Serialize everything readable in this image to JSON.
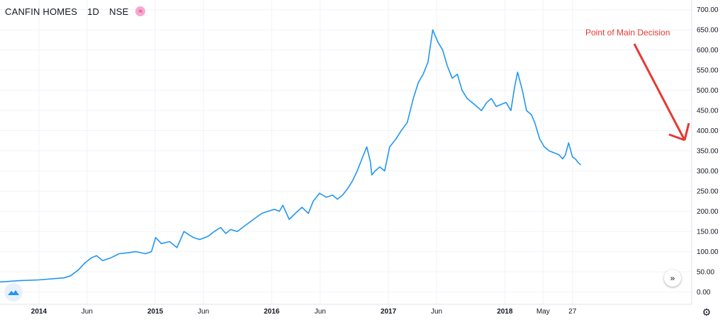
{
  "header": {
    "symbol": "CANFIN HOMES",
    "interval": "1D",
    "exchange": "NSE",
    "badge_icon": "compare-icon"
  },
  "annotation": {
    "text": "Point of Main Decision",
    "color": "#e53935"
  },
  "controls": {
    "scroll_icon": "double-chevron-right-icon",
    "logo_icon": "tradingview-logo-icon",
    "settings_icon": "gear-icon"
  },
  "chart_data": {
    "type": "line",
    "title": "CANFIN HOMES · 1D · NSE",
    "line_color": "#2196f3",
    "ylim": [
      -20,
      710
    ],
    "y_ticks": [
      "700.00",
      "650.00",
      "600.00",
      "550.00",
      "500.00",
      "450.00",
      "400.00",
      "350.00",
      "300.00",
      "250.00",
      "200.00",
      "150.00",
      "100.00",
      "50.00",
      "0.00"
    ],
    "xlim": [
      "2013-09-01",
      "2019-08-10"
    ],
    "x_ticks": [
      {
        "date": "2014-01-01",
        "label": "2014",
        "bold": true
      },
      {
        "date": "2014-06-01",
        "label": "Jun",
        "bold": false
      },
      {
        "date": "2015-01-01",
        "label": "2015",
        "bold": true
      },
      {
        "date": "2015-06-01",
        "label": "Jun",
        "bold": false
      },
      {
        "date": "2016-01-01",
        "label": "2016",
        "bold": true
      },
      {
        "date": "2016-06-01",
        "label": "Jun",
        "bold": false
      },
      {
        "date": "2017-01-01",
        "label": "2017",
        "bold": true
      },
      {
        "date": "2017-06-01",
        "label": "Jun",
        "bold": false
      },
      {
        "date": "2018-01-01",
        "label": "2018",
        "bold": true
      },
      {
        "date": "2018-05-01",
        "label": "May",
        "bold": false
      },
      {
        "date": "2018-08-01",
        "label": "27",
        "bold": false
      }
    ],
    "grid": true,
    "series": [
      {
        "dates": [
          "2013-09-01",
          "2013-11-01",
          "2014-01-01",
          "2014-02-15",
          "2014-03-20",
          "2014-04-10",
          "2014-05-05",
          "2014-05-25",
          "2014-06-15",
          "2014-07-01",
          "2014-07-20",
          "2014-08-15",
          "2014-09-10",
          "2014-10-05",
          "2014-11-01",
          "2014-12-01",
          "2014-12-20",
          "2015-01-02",
          "2015-01-20",
          "2015-02-15",
          "2015-03-10",
          "2015-04-01",
          "2015-04-20",
          "2015-05-01",
          "2015-05-20",
          "2015-06-15",
          "2015-07-05",
          "2015-07-25",
          "2015-08-10",
          "2015-08-25",
          "2015-09-15",
          "2015-10-10",
          "2015-11-05",
          "2015-12-01",
          "2015-12-20",
          "2016-01-10",
          "2016-01-25",
          "2016-02-05",
          "2016-02-25",
          "2016-03-15",
          "2016-04-05",
          "2016-04-25",
          "2016-05-10",
          "2016-05-30",
          "2016-06-20",
          "2016-07-10",
          "2016-07-25",
          "2016-08-10",
          "2016-08-25",
          "2016-09-10",
          "2016-09-25",
          "2016-10-10",
          "2016-10-25",
          "2016-11-05",
          "2016-11-10",
          "2016-11-20",
          "2016-12-05",
          "2016-12-20",
          "2017-01-05",
          "2017-01-25",
          "2017-02-10",
          "2017-03-01",
          "2017-03-20",
          "2017-04-05",
          "2017-04-20",
          "2017-05-05",
          "2017-05-20",
          "2017-06-05",
          "2017-06-20",
          "2017-07-05",
          "2017-07-20",
          "2017-08-05",
          "2017-08-20",
          "2017-09-05",
          "2017-09-20",
          "2017-10-05",
          "2017-10-20",
          "2017-11-05",
          "2017-11-20",
          "2017-12-05",
          "2017-12-20",
          "2018-01-05",
          "2018-01-20",
          "2018-02-01",
          "2018-02-10",
          "2018-02-25",
          "2018-03-10",
          "2018-03-25",
          "2018-04-05",
          "2018-04-20",
          "2018-05-05",
          "2018-05-20",
          "2018-06-05",
          "2018-06-20",
          "2018-07-01",
          "2018-07-10",
          "2018-07-20",
          "2018-08-01",
          "2018-08-10",
          "2018-08-20",
          "2018-08-27"
        ],
        "values": [
          25,
          28,
          30,
          33,
          35,
          40,
          55,
          72,
          85,
          90,
          78,
          85,
          95,
          97,
          100,
          95,
          100,
          135,
          120,
          125,
          110,
          150,
          140,
          135,
          130,
          138,
          150,
          160,
          145,
          155,
          150,
          165,
          180,
          195,
          200,
          205,
          200,
          215,
          180,
          195,
          210,
          195,
          225,
          245,
          235,
          240,
          230,
          240,
          255,
          275,
          300,
          330,
          360,
          325,
          290,
          300,
          310,
          300,
          360,
          380,
          400,
          420,
          480,
          520,
          540,
          570,
          650,
          620,
          600,
          560,
          530,
          540,
          500,
          480,
          470,
          460,
          450,
          470,
          480,
          460,
          465,
          470,
          450,
          510,
          545,
          500,
          450,
          440,
          420,
          380,
          360,
          350,
          345,
          340,
          330,
          340,
          370,
          335,
          330,
          320,
          315
        ]
      }
    ]
  }
}
